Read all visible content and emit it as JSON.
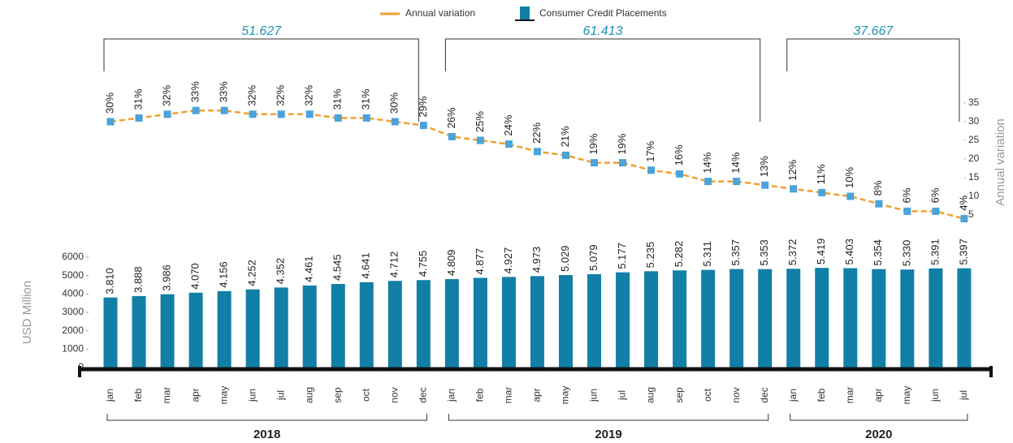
{
  "chart_data": {
    "type": "bar",
    "legend": "top",
    "categories": [
      "jan",
      "feb",
      "mar",
      "apr",
      "may",
      "jun",
      "jul",
      "aug",
      "sep",
      "oct",
      "nov",
      "dec",
      "jan",
      "feb",
      "mar",
      "apr",
      "may",
      "jun",
      "jul",
      "aug",
      "sep",
      "oct",
      "nov",
      "dec",
      "jan",
      "feb",
      "mar",
      "apr",
      "may",
      "jun",
      "jul"
    ],
    "groups": [
      "2018",
      "2019",
      "2020"
    ],
    "annotations": [
      "51.627",
      "61.413",
      "37.667"
    ],
    "ylabel": "USD Million",
    "y2label": "Annual variation",
    "ylim": [
      0,
      6000
    ],
    "yticks": [
      0,
      1000,
      2000,
      3000,
      4000,
      5000,
      6000
    ],
    "y2lim": [
      0,
      40
    ],
    "y2ticks": [
      5,
      10,
      15,
      20,
      25,
      30,
      35
    ],
    "series": [
      {
        "name": "Consumer Credit Placements",
        "type": "bar",
        "color": "#117fa6",
        "values": [
          3810,
          3888,
          3986,
          4070,
          4156,
          4252,
          4352,
          4461,
          4545,
          4641,
          4712,
          4755,
          4809,
          4877,
          4927,
          4973,
          5029,
          5079,
          5177,
          5235,
          5282,
          5311,
          5357,
          5353,
          5372,
          5419,
          5403,
          5354,
          5330,
          5391,
          5397
        ],
        "value_labels": [
          "3.810",
          "3.888",
          "3.986",
          "4.070",
          "4.156",
          "4.252",
          "4.352",
          "4.461",
          "4.545",
          "4.641",
          "4.712",
          "4.755",
          "4.809",
          "4.877",
          "4.927",
          "4.973",
          "5.029",
          "5.079",
          "5.177",
          "5.235",
          "5.282",
          "5.311",
          "5.357",
          "5.353",
          "5.372",
          "5.419",
          "5.403",
          "5.354",
          "5.330",
          "5.391",
          "5.397"
        ]
      },
      {
        "name": "Annual variation",
        "type": "line",
        "axis": "y2",
        "color": "#f0a030",
        "marker_color": "#4aa3d9",
        "values": [
          30,
          31,
          32,
          33,
          33,
          32,
          32,
          32,
          31,
          31,
          30,
          29,
          26,
          25,
          24,
          22,
          21,
          19,
          19,
          17,
          16,
          14,
          14,
          13,
          12,
          11,
          10,
          8,
          6,
          6,
          4
        ],
        "value_labels": [
          "30%",
          "31%",
          "32%",
          "33%",
          "33%",
          "32%",
          "32%",
          "32%",
          "31%",
          "31%",
          "30%",
          "29%",
          "26%",
          "25%",
          "24%",
          "22%",
          "21%",
          "19%",
          "19%",
          "17%",
          "16%",
          "14%",
          "14%",
          "13%",
          "12%",
          "11%",
          "10%",
          "8%",
          "6%",
          "6%",
          "4%"
        ]
      }
    ]
  }
}
